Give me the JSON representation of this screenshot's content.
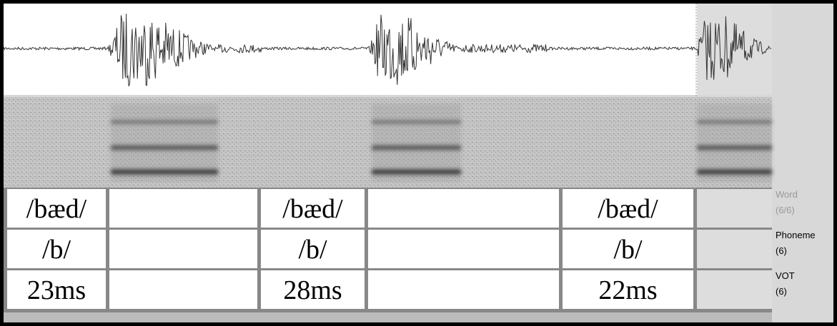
{
  "tiers": [
    {
      "name": "Word",
      "count": "(6/6)",
      "labels": [
        "/bæd/",
        "/bæd/",
        "/bæd/"
      ]
    },
    {
      "name": "Phoneme",
      "count": "(6)",
      "labels": [
        "/b/",
        "/b/",
        "/b/"
      ]
    },
    {
      "name": "VOT",
      "count": "(6)",
      "labels": [
        "23ms",
        "28ms",
        "22ms"
      ]
    }
  ]
}
